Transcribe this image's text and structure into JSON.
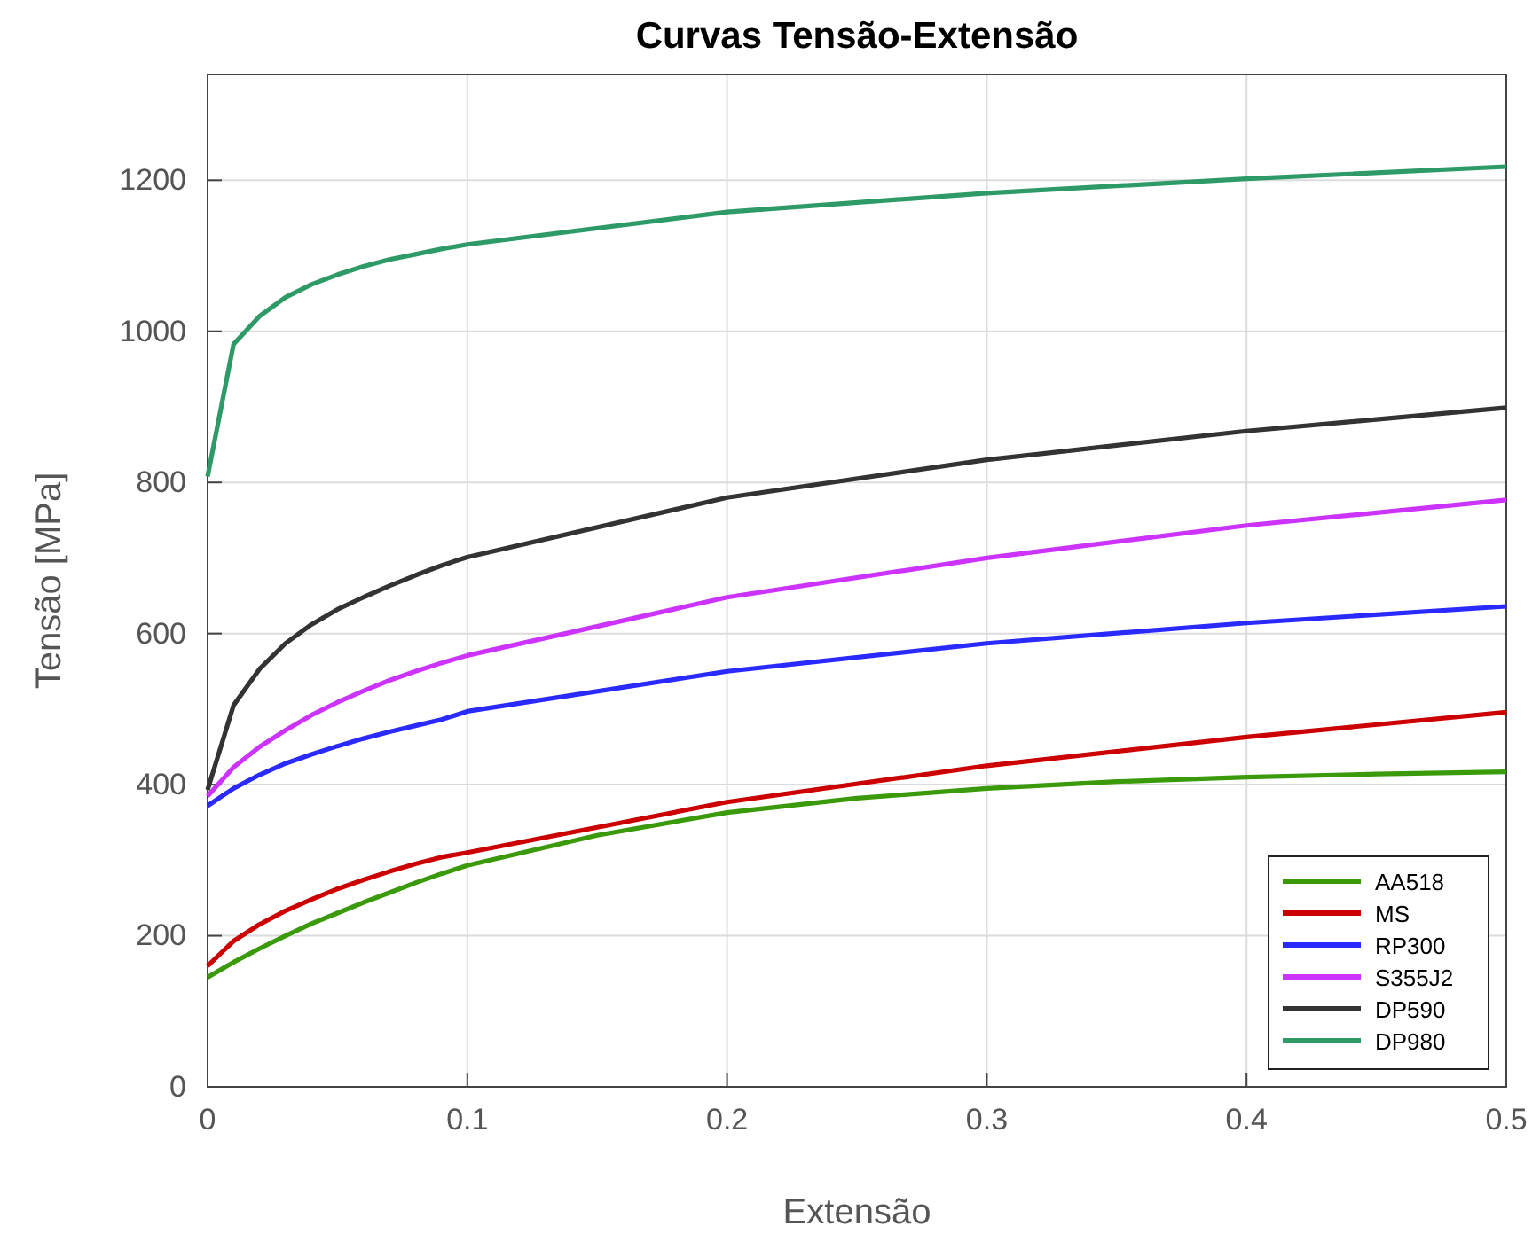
{
  "chart_data": {
    "type": "line",
    "title": "Curvas Tensão-Extensão",
    "xlabel": "Extensão",
    "ylabel": "Tensão [MPa]",
    "x": [
      0,
      0.01,
      0.02,
      0.03,
      0.04,
      0.05,
      0.06,
      0.07,
      0.08,
      0.09,
      0.1,
      0.2,
      0.3,
      0.4,
      0.5
    ],
    "series": [
      {
        "name": "AA518",
        "color": "#3a9a0a",
        "x": [
          0,
          0.01,
          0.02,
          0.03,
          0.04,
          0.05,
          0.06,
          0.07,
          0.08,
          0.09,
          0.1,
          0.15,
          0.2,
          0.25,
          0.3,
          0.35,
          0.4,
          0.45,
          0.5
        ],
        "values": [
          145,
          165,
          183,
          200,
          216,
          230,
          244,
          257,
          270,
          282,
          293,
          333,
          363,
          382,
          395,
          404,
          410,
          414,
          417
        ]
      },
      {
        "name": "MS",
        "color": "#cc0000",
        "values": [
          160,
          193,
          215,
          233,
          248,
          262,
          274,
          285,
          295,
          304,
          310,
          377,
          425,
          463,
          496
        ]
      },
      {
        "name": "RP300",
        "color": "#2a2aff",
        "values": [
          372,
          395,
          413,
          428,
          440,
          451,
          461,
          470,
          478,
          486,
          497,
          550,
          587,
          614,
          636
        ]
      },
      {
        "name": "S355J2",
        "color": "#cc33ff",
        "values": [
          385,
          423,
          450,
          472,
          492,
          509,
          524,
          538,
          550,
          561,
          571,
          648,
          700,
          743,
          777
        ]
      },
      {
        "name": "DP590",
        "color": "#333333",
        "values": [
          393,
          505,
          553,
          587,
          612,
          632,
          648,
          663,
          677,
          690,
          701,
          780,
          830,
          868,
          899
        ]
      },
      {
        "name": "DP980",
        "color": "#2e9a68",
        "values": [
          808,
          983,
          1020,
          1045,
          1062,
          1075,
          1086,
          1095,
          1102,
          1109,
          1115,
          1158,
          1183,
          1202,
          1218
        ]
      }
    ],
    "xlim": [
      0,
      0.5
    ],
    "xticks": [
      0,
      0.1,
      0.2,
      0.3,
      0.4,
      0.5
    ],
    "ylim": [
      0,
      1340
    ],
    "yticks": [
      0,
      200,
      400,
      600,
      800,
      1000,
      1200
    ],
    "grid": true,
    "legend": "bottom right",
    "marker": "none",
    "line_style": "solid"
  }
}
